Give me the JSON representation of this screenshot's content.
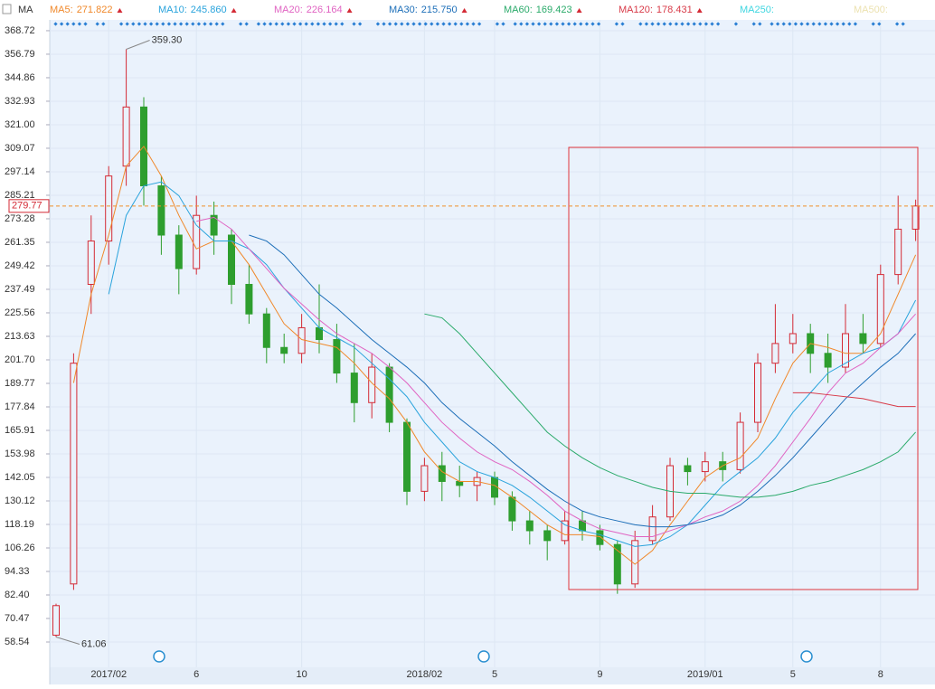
{
  "chart_data": {
    "type": "candlestick",
    "indicator": "MA",
    "categories": [
      null,
      null,
      null,
      "2017/02",
      null,
      null,
      null,
      null,
      "6",
      null,
      null,
      null,
      null,
      null,
      "10",
      null,
      null,
      null,
      null,
      null,
      null,
      "2018/02",
      null,
      null,
      null,
      "5",
      null,
      null,
      null,
      null,
      null,
      "9",
      null,
      null,
      null,
      null,
      null,
      "2019/01",
      null,
      null,
      null,
      null,
      "5",
      null,
      null,
      null,
      null,
      "8",
      null,
      null
    ],
    "open": [
      62,
      88,
      240,
      262,
      300,
      330,
      290,
      265,
      248,
      275,
      265,
      240,
      225,
      208,
      205,
      218,
      212,
      195,
      180,
      198,
      170,
      135,
      148,
      140,
      138,
      142,
      132,
      120,
      115,
      110,
      120,
      115,
      108,
      88,
      110,
      122,
      148,
      145,
      150,
      146,
      170,
      200,
      210,
      215,
      205,
      198,
      215,
      210,
      245,
      268
    ],
    "high": [
      78,
      205,
      275,
      300,
      359.3,
      335,
      295,
      270,
      285,
      282,
      268,
      250,
      228,
      215,
      225,
      240,
      220,
      210,
      205,
      200,
      172,
      152,
      155,
      148,
      145,
      145,
      135,
      125,
      118,
      125,
      125,
      118,
      110,
      115,
      128,
      152,
      152,
      155,
      155,
      175,
      205,
      230,
      225,
      220,
      215,
      230,
      225,
      250,
      285,
      283
    ],
    "low": [
      61.06,
      85,
      225,
      250,
      290,
      280,
      255,
      235,
      245,
      255,
      230,
      220,
      200,
      200,
      200,
      205,
      190,
      170,
      172,
      165,
      128,
      130,
      130,
      132,
      130,
      128,
      115,
      108,
      100,
      108,
      110,
      105,
      83,
      86,
      108,
      120,
      138,
      140,
      140,
      144,
      165,
      195,
      205,
      195,
      190,
      195,
      205,
      208,
      240,
      262
    ],
    "close": [
      77,
      200,
      262,
      295,
      330,
      290,
      265,
      248,
      275,
      265,
      240,
      225,
      208,
      205,
      218,
      212,
      195,
      180,
      198,
      170,
      135,
      148,
      140,
      138,
      142,
      132,
      120,
      115,
      110,
      120,
      115,
      108,
      88,
      110,
      122,
      148,
      145,
      150,
      146,
      170,
      200,
      210,
      215,
      205,
      198,
      215,
      210,
      245,
      268,
      279.77
    ],
    "up_color": "#d42a35",
    "down_color": "#2e9e2e",
    "series": [
      {
        "name": "MA5:",
        "value": 271.822,
        "color": "#f0882a",
        "values": [
          null,
          190,
          235,
          265,
          300,
          310,
          295,
          275,
          258,
          262,
          262,
          250,
          235,
          220,
          212,
          210,
          208,
          200,
          190,
          182,
          170,
          155,
          145,
          140,
          140,
          138,
          132,
          125,
          118,
          113,
          113,
          112,
          105,
          98,
          105,
          118,
          130,
          142,
          148,
          152,
          162,
          182,
          200,
          210,
          208,
          205,
          205,
          215,
          235,
          255
        ]
      },
      {
        "name": "MA10:",
        "value": 245.86,
        "value_label": "245.860",
        "color": "#29a3dc",
        "values": [
          null,
          null,
          null,
          235,
          275,
          290,
          292,
          285,
          270,
          262,
          262,
          258,
          250,
          238,
          228,
          218,
          213,
          208,
          200,
          192,
          183,
          170,
          160,
          150,
          145,
          142,
          138,
          132,
          125,
          118,
          115,
          113,
          110,
          107,
          108,
          112,
          118,
          128,
          138,
          145,
          152,
          162,
          175,
          185,
          195,
          200,
          205,
          208,
          215,
          232
        ]
      },
      {
        "name": "MA20:",
        "value": 226.164,
        "color": "#e063c2",
        "values": [
          null,
          null,
          null,
          null,
          null,
          null,
          null,
          null,
          272,
          274,
          268,
          258,
          248,
          238,
          230,
          222,
          215,
          210,
          205,
          198,
          190,
          180,
          170,
          162,
          155,
          150,
          146,
          140,
          133,
          125,
          120,
          116,
          114,
          112,
          112,
          115,
          118,
          122,
          125,
          130,
          138,
          148,
          160,
          172,
          185,
          195,
          200,
          208,
          215,
          225
        ]
      },
      {
        "name": "MA30:",
        "value": 215.75,
        "value_label": "215.750",
        "color": "#1c6eb8",
        "values": [
          null,
          null,
          null,
          null,
          null,
          null,
          null,
          null,
          null,
          null,
          null,
          265,
          262,
          255,
          245,
          235,
          228,
          220,
          212,
          205,
          198,
          190,
          180,
          172,
          165,
          158,
          150,
          143,
          136,
          130,
          125,
          122,
          120,
          118,
          117,
          117,
          118,
          120,
          123,
          128,
          135,
          143,
          152,
          162,
          172,
          182,
          190,
          198,
          205,
          215
        ]
      },
      {
        "name": "MA60:",
        "value": 169.423,
        "color": "#2aaa6a",
        "values": [
          null,
          null,
          null,
          null,
          null,
          null,
          null,
          null,
          null,
          null,
          null,
          null,
          null,
          null,
          null,
          null,
          null,
          null,
          null,
          null,
          null,
          225,
          223,
          215,
          205,
          195,
          185,
          175,
          165,
          158,
          152,
          147,
          143,
          140,
          137,
          135,
          134,
          134,
          133,
          132,
          132,
          133,
          135,
          138,
          140,
          143,
          146,
          150,
          155,
          165
        ]
      },
      {
        "name": "MA120:",
        "value": 178.431,
        "color": "#d83a48",
        "values": [
          null,
          null,
          null,
          null,
          null,
          null,
          null,
          null,
          null,
          null,
          null,
          null,
          null,
          null,
          null,
          null,
          null,
          null,
          null,
          null,
          null,
          null,
          null,
          null,
          null,
          null,
          null,
          null,
          null,
          null,
          null,
          null,
          null,
          null,
          null,
          null,
          null,
          null,
          null,
          null,
          null,
          null,
          185,
          185,
          184,
          183,
          182,
          180,
          178,
          178
        ]
      },
      {
        "name": "MA250:",
        "color": "#3fd6e0"
      },
      {
        "name": "MA500:",
        "color": "#ece2b0"
      }
    ],
    "current_price": 279.77,
    "annotations": [
      {
        "value": 359.3,
        "label": "359.30",
        "index": 4
      },
      {
        "value": 61.06,
        "label": "61.06",
        "index": 0
      }
    ],
    "ylim": [
      45.7,
      374.2
    ],
    "yticks": [
      368.72,
      356.79,
      344.86,
      332.93,
      {
        "value": 321,
        "label": "321.00"
      },
      309.07,
      297.14,
      285.21,
      273.28,
      261.35,
      249.42,
      237.49,
      225.56,
      213.63,
      {
        "value": 201.7,
        "label": "201.70"
      },
      189.77,
      177.84,
      165.91,
      153.98,
      142.05,
      130.12,
      118.19,
      106.26,
      94.33,
      {
        "value": 82.4,
        "label": "82.40"
      },
      70.47,
      58.54
    ],
    "grid": true
  }
}
